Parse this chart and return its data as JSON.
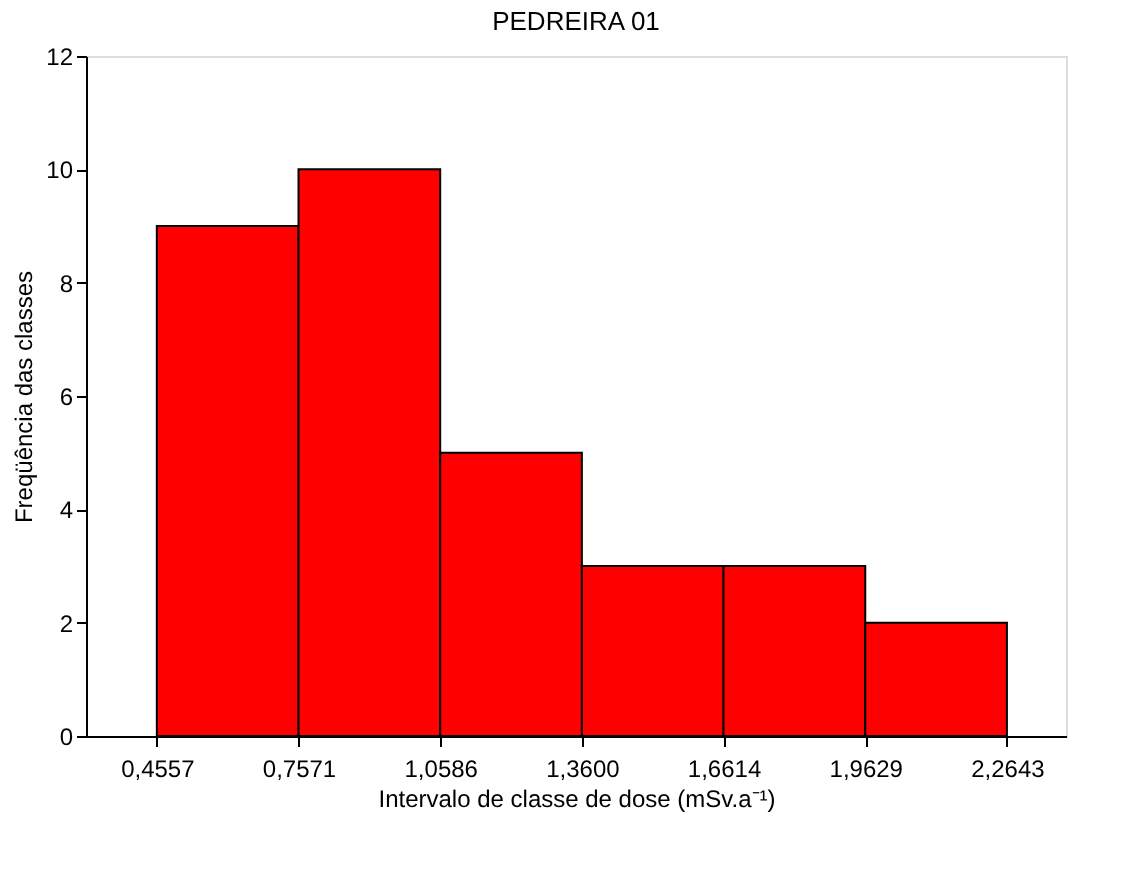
{
  "chart_data": {
    "type": "histogram",
    "title": "PEDREIRA  01",
    "xlabel": "Intervalo de classe de dose (mSv.a⁻¹)",
    "ylabel": "Freqüência das classes",
    "bins": [
      0.4557,
      0.7571,
      1.0586,
      1.36,
      1.6614,
      1.9629,
      2.2643
    ],
    "values": [
      9,
      10,
      5,
      3,
      3,
      2
    ],
    "color": "#ff0000",
    "xlim": [
      0.305,
      2.39
    ],
    "xticks": [
      {
        "value": 0.4557,
        "label": "0,4557"
      },
      {
        "value": 0.7571,
        "label": "0,7571"
      },
      {
        "value": 1.0586,
        "label": "1,0586"
      },
      {
        "value": 1.36,
        "label": "1,3600"
      },
      {
        "value": 1.6614,
        "label": "1,6614"
      },
      {
        "value": 1.9629,
        "label": "1,9629"
      },
      {
        "value": 2.2643,
        "label": "2,2643"
      }
    ],
    "ylim": [
      0,
      12
    ],
    "yticks": [
      0,
      2,
      4,
      6,
      8,
      10,
      12
    ],
    "grid": false
  }
}
